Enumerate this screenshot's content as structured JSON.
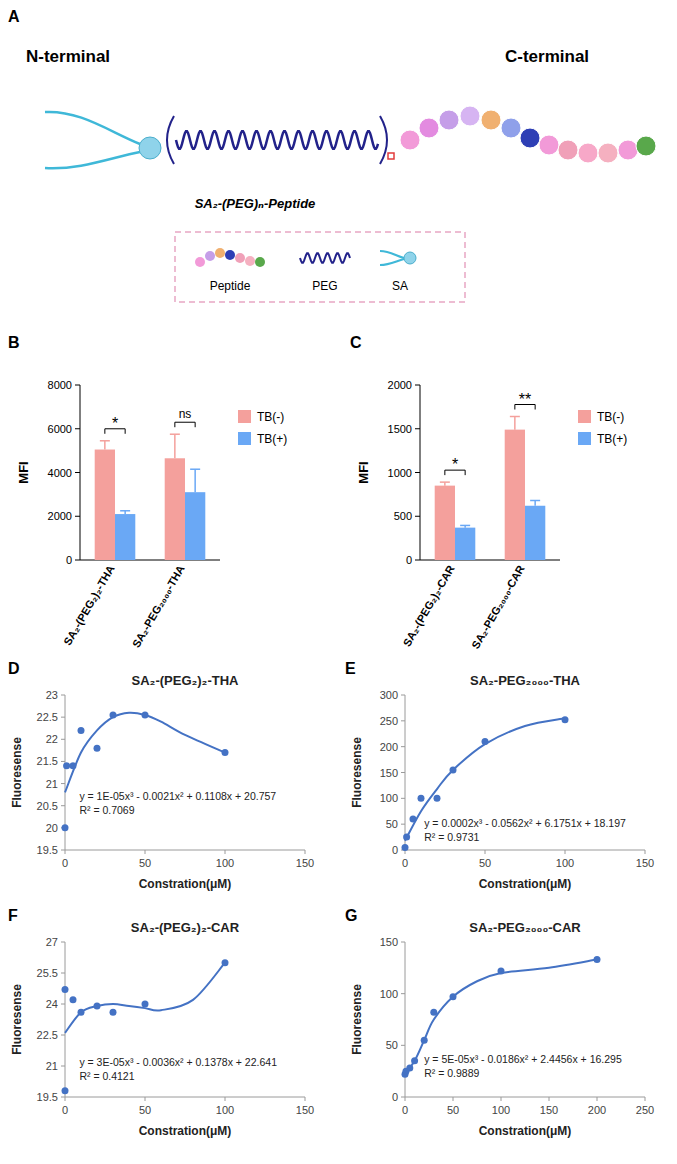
{
  "diagram": {
    "panel": "A",
    "n_terminal": "N-terminal",
    "c_terminal": "C-terminal",
    "molecule": "SA₂-(PEG)ₙ-Peptide",
    "key": [
      "Peptide",
      "PEG",
      "SA"
    ]
  },
  "chart_data": [
    {
      "type": "bar",
      "panel": "B",
      "y_label": "MFI",
      "categories": [
        "SA₂-(PEG₂)₂-THA",
        "SA₂-PEG₂₀₀₀-THA"
      ],
      "series": [
        {
          "name": "TB(-)",
          "color": "#f4a09c",
          "values": [
            5050,
            4650
          ],
          "errors": [
            400,
            1100
          ]
        },
        {
          "name": "TB(+)",
          "color": "#6aa8f5",
          "values": [
            2100,
            3100
          ],
          "errors": [
            150,
            1050
          ]
        }
      ],
      "ylim": [
        0,
        8000
      ],
      "yticks": [
        0,
        2000,
        4000,
        6000,
        8000
      ],
      "legend": "right",
      "annotations": [
        "*",
        "ns"
      ]
    },
    {
      "type": "bar",
      "panel": "C",
      "y_label": "MFI",
      "categories": [
        "SA₂-(PEG₂)₂-CAR",
        "SA₂-PEG₂₀₀₀-CAR"
      ],
      "series": [
        {
          "name": "TB(-)",
          "color": "#f4a09c",
          "values": [
            850,
            1490
          ],
          "errors": [
            40,
            150
          ]
        },
        {
          "name": "TB(+)",
          "color": "#6aa8f5",
          "values": [
            370,
            620
          ],
          "errors": [
            25,
            60
          ]
        }
      ],
      "ylim": [
        0,
        2000
      ],
      "yticks": [
        0,
        500,
        1000,
        1500,
        2000
      ],
      "legend": "right",
      "annotations": [
        "*",
        "**"
      ]
    },
    {
      "type": "scatter",
      "panel": "D",
      "title": "SA₂-(PEG₂)₂-THA",
      "x_label": "Constration(μM)",
      "y_label": "Fluoresense",
      "series": [
        {
          "type": "scatter",
          "marker": "circle",
          "color": "#4472c4",
          "x": [
            0,
            1,
            5,
            10,
            20,
            30,
            50,
            100
          ],
          "values": [
            20,
            21.4,
            21.4,
            22.2,
            21.8,
            22.55,
            22.55,
            21.7
          ]
        },
        {
          "type": "line",
          "line_style": "smooth",
          "color": "#4472c4",
          "x": [
            0,
            10,
            20,
            30,
            40,
            50,
            60,
            75,
            100
          ],
          "values": [
            20.8,
            21.7,
            22.2,
            22.5,
            22.6,
            22.55,
            22.4,
            22.1,
            21.7
          ]
        }
      ],
      "xlim": [
        0,
        150
      ],
      "xticks": [
        0,
        50,
        100,
        150
      ],
      "ylim": [
        19.5,
        23
      ],
      "yticks": [
        19.5,
        20,
        20.5,
        21,
        21.5,
        22,
        22.5,
        23
      ],
      "annotations": [
        "y = 1E-05x³ - 0.0021x² + 0.1108x + 20.757",
        "R² = 0.7069"
      ]
    },
    {
      "type": "scatter",
      "panel": "E",
      "title": "SA₂-PEG₂₀₀₀-THA",
      "x_label": "Constration(μM)",
      "y_label": "Fluoresense",
      "series": [
        {
          "type": "scatter",
          "marker": "circle",
          "color": "#4472c4",
          "x": [
            0,
            1,
            5,
            10,
            20,
            30,
            50,
            100
          ],
          "values": [
            5,
            25,
            60,
            100,
            100,
            155,
            210,
            252
          ]
        },
        {
          "type": "line",
          "line_style": "smooth",
          "color": "#4472c4",
          "x": [
            0,
            10,
            20,
            30,
            50,
            75,
            100
          ],
          "values": [
            18,
            75,
            118,
            155,
            205,
            240,
            255
          ]
        }
      ],
      "xlim": [
        0,
        150
      ],
      "xticks": [
        0,
        50,
        100,
        150
      ],
      "ylim": [
        0,
        300
      ],
      "yticks": [
        0,
        50,
        100,
        150,
        200,
        250,
        300
      ],
      "annotations": [
        "y = 0.0002x³ - 0.0562x² + 6.1751x + 18.197",
        "R² = 0.9731"
      ]
    },
    {
      "type": "scatter",
      "panel": "F",
      "title": "SA₂-(PEG₂)₂-CAR",
      "x_label": "Constration(μM)",
      "y_label": "Fluoresense",
      "series": [
        {
          "type": "scatter",
          "marker": "circle",
          "color": "#4472c4",
          "x": [
            0,
            0,
            5,
            10,
            20,
            30,
            50,
            100
          ],
          "values": [
            19.8,
            24.7,
            24.2,
            23.6,
            23.9,
            23.6,
            24.0,
            26.0
          ]
        },
        {
          "type": "line",
          "line_style": "smooth",
          "color": "#4472c4",
          "x": [
            0,
            10,
            20,
            30,
            40,
            50,
            60,
            80,
            100
          ],
          "values": [
            22.6,
            23.6,
            23.9,
            24.0,
            23.9,
            23.8,
            23.7,
            24.2,
            26.0
          ]
        }
      ],
      "xlim": [
        0,
        150
      ],
      "xticks": [
        0,
        50,
        100,
        150
      ],
      "ylim": [
        19.5,
        27
      ],
      "yticks": [
        19.5,
        21,
        22.5,
        24,
        25.5,
        27
      ],
      "annotations": [
        "y = 3E-05x³ - 0.0036x² + 0.1378x + 22.641",
        "R² = 0.4121"
      ]
    },
    {
      "type": "scatter",
      "panel": "G",
      "title": "SA₂-PEG₂₀₀₀-CAR",
      "x_label": "Constration(μM)",
      "y_label": "Fluoresense",
      "series": [
        {
          "type": "scatter",
          "marker": "circle",
          "color": "#4472c4",
          "x": [
            0,
            1,
            5,
            10,
            20,
            30,
            50,
            100,
            200
          ],
          "values": [
            22,
            25,
            28,
            35,
            55,
            82,
            97,
            122,
            133
          ]
        },
        {
          "type": "line",
          "line_style": "smooth",
          "color": "#4472c4",
          "x": [
            0,
            10,
            20,
            30,
            50,
            75,
            100,
            150,
            200
          ],
          "values": [
            22,
            35,
            55,
            75,
            97,
            112,
            120,
            125,
            133
          ]
        }
      ],
      "xlim": [
        0,
        250
      ],
      "xticks": [
        0,
        50,
        100,
        150,
        200,
        250
      ],
      "ylim": [
        0,
        150
      ],
      "yticks": [
        0,
        50,
        100,
        150
      ],
      "annotations": [
        "y = 5E-05x³ - 0.0186x² + 2.4456x + 16.295",
        "R² = 0.9889"
      ]
    }
  ]
}
